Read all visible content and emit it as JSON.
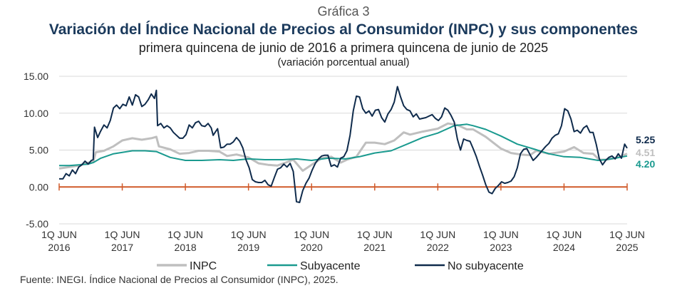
{
  "header": {
    "kicker": "Gráfica 3",
    "title": "Variación del Índice Nacional de Precios al Consumidor (INPC) y sus componentes",
    "subtitle": "primera quincena de junio de 2016 a primera quincena de junio de 2025",
    "units_note": "(variación porcentual anual)"
  },
  "source": "Fuente: INEGI. Índice Nacional de Precios al Consumidor (INPC), 2025.",
  "colors": {
    "inpc": "#bfbfbf",
    "subyacente": "#1a9a8f",
    "no_subyacente": "#0f2b4c",
    "zero_axis": "#d05a2a",
    "grid": "#d9d9d9"
  },
  "chart_data": {
    "type": "line",
    "x_tick_labels": [
      [
        "1Q JUN",
        "2016"
      ],
      [
        "1Q JUN",
        "2017"
      ],
      [
        "1Q JUN",
        "2018"
      ],
      [
        "1Q JUN",
        "2019"
      ],
      [
        "1Q JUN",
        "2020"
      ],
      [
        "1Q JUN",
        "2021"
      ],
      [
        "1Q JUN",
        "2022"
      ],
      [
        "1Q JUN",
        "2023"
      ],
      [
        "1Q JUN",
        "2024"
      ],
      [
        "1Q JUN",
        "2025"
      ]
    ],
    "ylim": [
      -5,
      15
    ],
    "yticks": [
      -5,
      0,
      5,
      10,
      15
    ],
    "ytick_labels": [
      "-5.00",
      "0.00",
      "5.00",
      "10.00",
      "15.00"
    ],
    "xlim": [
      2016.44,
      2025.44
    ],
    "legend_position": "bottom",
    "grid": "horizontal",
    "series": [
      {
        "name": "INPC",
        "end_label": "4.51",
        "points": [
          [
            2016.44,
            2.5
          ],
          [
            2016.6,
            2.7
          ],
          [
            2016.75,
            2.9
          ],
          [
            2016.9,
            3.3
          ],
          [
            2016.98,
            3.4
          ],
          [
            2017.02,
            4.7
          ],
          [
            2017.15,
            4.9
          ],
          [
            2017.3,
            5.5
          ],
          [
            2017.44,
            6.3
          ],
          [
            2017.6,
            6.6
          ],
          [
            2017.75,
            6.4
          ],
          [
            2017.9,
            6.6
          ],
          [
            2017.98,
            6.8
          ],
          [
            2018.02,
            5.5
          ],
          [
            2018.2,
            5.1
          ],
          [
            2018.35,
            4.5
          ],
          [
            2018.5,
            4.6
          ],
          [
            2018.65,
            4.9
          ],
          [
            2018.8,
            4.9
          ],
          [
            2018.98,
            4.8
          ],
          [
            2019.1,
            4.2
          ],
          [
            2019.25,
            4.4
          ],
          [
            2019.44,
            4.0
          ],
          [
            2019.6,
            3.2
          ],
          [
            2019.75,
            3.0
          ],
          [
            2019.9,
            2.9
          ],
          [
            2020.0,
            3.2
          ],
          [
            2020.15,
            3.7
          ],
          [
            2020.3,
            2.2
          ],
          [
            2020.44,
            3.0
          ],
          [
            2020.6,
            3.9
          ],
          [
            2020.75,
            4.1
          ],
          [
            2020.9,
            3.3
          ],
          [
            2021.0,
            3.7
          ],
          [
            2021.15,
            4.1
          ],
          [
            2021.3,
            6.0
          ],
          [
            2021.44,
            6.0
          ],
          [
            2021.6,
            5.8
          ],
          [
            2021.75,
            6.3
          ],
          [
            2021.9,
            7.4
          ],
          [
            2022.0,
            7.1
          ],
          [
            2022.2,
            7.5
          ],
          [
            2022.44,
            7.9
          ],
          [
            2022.6,
            8.6
          ],
          [
            2022.75,
            8.4
          ],
          [
            2022.9,
            7.8
          ],
          [
            2023.0,
            7.8
          ],
          [
            2023.2,
            6.8
          ],
          [
            2023.44,
            5.2
          ],
          [
            2023.6,
            4.6
          ],
          [
            2023.75,
            4.4
          ],
          [
            2023.9,
            4.3
          ],
          [
            2024.0,
            4.9
          ],
          [
            2024.2,
            4.5
          ],
          [
            2024.44,
            4.8
          ],
          [
            2024.6,
            5.4
          ],
          [
            2024.75,
            4.6
          ],
          [
            2024.9,
            4.5
          ],
          [
            2025.0,
            3.7
          ],
          [
            2025.1,
            3.7
          ],
          [
            2025.25,
            3.9
          ],
          [
            2025.35,
            4.2
          ],
          [
            2025.44,
            4.51
          ]
        ]
      },
      {
        "name": "Subyacente",
        "end_label": "4.20",
        "points": [
          [
            2016.44,
            2.9
          ],
          [
            2016.6,
            2.9
          ],
          [
            2016.75,
            3.0
          ],
          [
            2016.9,
            3.1
          ],
          [
            2016.98,
            3.3
          ],
          [
            2017.1,
            3.9
          ],
          [
            2017.3,
            4.5
          ],
          [
            2017.6,
            4.9
          ],
          [
            2017.8,
            4.9
          ],
          [
            2017.98,
            4.8
          ],
          [
            2018.2,
            4.0
          ],
          [
            2018.44,
            3.6
          ],
          [
            2018.7,
            3.6
          ],
          [
            2018.98,
            3.7
          ],
          [
            2019.2,
            3.6
          ],
          [
            2019.44,
            3.8
          ],
          [
            2019.7,
            3.7
          ],
          [
            2019.98,
            3.7
          ],
          [
            2020.2,
            3.8
          ],
          [
            2020.44,
            3.6
          ],
          [
            2020.7,
            3.9
          ],
          [
            2020.98,
            3.8
          ],
          [
            2021.2,
            4.1
          ],
          [
            2021.44,
            4.6
          ],
          [
            2021.7,
            4.9
          ],
          [
            2021.98,
            5.9
          ],
          [
            2022.2,
            6.7
          ],
          [
            2022.44,
            7.3
          ],
          [
            2022.7,
            8.3
          ],
          [
            2022.9,
            8.5
          ],
          [
            2023.0,
            8.3
          ],
          [
            2023.2,
            7.8
          ],
          [
            2023.44,
            6.9
          ],
          [
            2023.7,
            5.8
          ],
          [
            2023.98,
            5.1
          ],
          [
            2024.2,
            4.5
          ],
          [
            2024.44,
            4.1
          ],
          [
            2024.7,
            4.0
          ],
          [
            2024.98,
            3.6
          ],
          [
            2025.1,
            3.7
          ],
          [
            2025.25,
            3.9
          ],
          [
            2025.44,
            4.2
          ]
        ]
      },
      {
        "name": "No subyacente",
        "end_label": "5.25",
        "points": [
          [
            2016.44,
            1.1
          ],
          [
            2016.5,
            1.1
          ],
          [
            2016.55,
            1.8
          ],
          [
            2016.6,
            1.5
          ],
          [
            2016.65,
            2.3
          ],
          [
            2016.7,
            1.8
          ],
          [
            2016.75,
            2.7
          ],
          [
            2016.8,
            3.0
          ],
          [
            2016.85,
            3.5
          ],
          [
            2016.9,
            3.1
          ],
          [
            2016.95,
            3.6
          ],
          [
            2016.98,
            3.7
          ],
          [
            2017.0,
            8.1
          ],
          [
            2017.05,
            6.7
          ],
          [
            2017.1,
            7.6
          ],
          [
            2017.15,
            8.4
          ],
          [
            2017.2,
            8.0
          ],
          [
            2017.25,
            9.0
          ],
          [
            2017.3,
            10.7
          ],
          [
            2017.35,
            11.1
          ],
          [
            2017.4,
            10.6
          ],
          [
            2017.45,
            11.2
          ],
          [
            2017.5,
            11.0
          ],
          [
            2017.55,
            12.2
          ],
          [
            2017.6,
            11.1
          ],
          [
            2017.65,
            12.5
          ],
          [
            2017.7,
            12.2
          ],
          [
            2017.75,
            10.9
          ],
          [
            2017.8,
            11.2
          ],
          [
            2017.85,
            11.8
          ],
          [
            2017.9,
            12.6
          ],
          [
            2017.95,
            12.0
          ],
          [
            2017.98,
            13.1
          ],
          [
            2018.0,
            8.3
          ],
          [
            2018.05,
            8.6
          ],
          [
            2018.1,
            8.0
          ],
          [
            2018.15,
            8.3
          ],
          [
            2018.2,
            8.0
          ],
          [
            2018.25,
            7.4
          ],
          [
            2018.3,
            7.0
          ],
          [
            2018.35,
            6.6
          ],
          [
            2018.4,
            6.6
          ],
          [
            2018.45,
            7.1
          ],
          [
            2018.5,
            8.4
          ],
          [
            2018.55,
            8.0
          ],
          [
            2018.6,
            8.7
          ],
          [
            2018.65,
            8.9
          ],
          [
            2018.7,
            8.3
          ],
          [
            2018.75,
            8.2
          ],
          [
            2018.8,
            8.6
          ],
          [
            2018.85,
            8.0
          ],
          [
            2018.88,
            7.0
          ],
          [
            2018.95,
            7.9
          ],
          [
            2019.0,
            5.3
          ],
          [
            2019.05,
            5.4
          ],
          [
            2019.1,
            5.8
          ],
          [
            2019.15,
            5.8
          ],
          [
            2019.2,
            6.1
          ],
          [
            2019.25,
            6.7
          ],
          [
            2019.3,
            6.2
          ],
          [
            2019.35,
            5.3
          ],
          [
            2019.4,
            3.7
          ],
          [
            2019.45,
            2.6
          ],
          [
            2019.5,
            1.0
          ],
          [
            2019.55,
            0.7
          ],
          [
            2019.6,
            0.6
          ],
          [
            2019.65,
            0.6
          ],
          [
            2019.7,
            0.9
          ],
          [
            2019.75,
            0.3
          ],
          [
            2019.8,
            0.1
          ],
          [
            2019.85,
            1.3
          ],
          [
            2019.9,
            2.4
          ],
          [
            2019.95,
            2.6
          ],
          [
            2020.0,
            3.1
          ],
          [
            2020.05,
            2.7
          ],
          [
            2020.1,
            3.2
          ],
          [
            2020.15,
            2.1
          ],
          [
            2020.2,
            -2.0
          ],
          [
            2020.25,
            -2.1
          ],
          [
            2020.3,
            -0.5
          ],
          [
            2020.35,
            0.5
          ],
          [
            2020.4,
            1.2
          ],
          [
            2020.45,
            2.3
          ],
          [
            2020.5,
            3.2
          ],
          [
            2020.55,
            3.8
          ],
          [
            2020.6,
            4.2
          ],
          [
            2020.65,
            4.3
          ],
          [
            2020.7,
            4.3
          ],
          [
            2020.75,
            2.8
          ],
          [
            2020.8,
            3.0
          ],
          [
            2020.85,
            2.7
          ],
          [
            2020.9,
            3.9
          ],
          [
            2020.95,
            4.1
          ],
          [
            2021.0,
            4.9
          ],
          [
            2021.05,
            7.0
          ],
          [
            2021.1,
            10.3
          ],
          [
            2021.15,
            12.3
          ],
          [
            2021.2,
            12.2
          ],
          [
            2021.25,
            10.6
          ],
          [
            2021.3,
            10.0
          ],
          [
            2021.35,
            10.3
          ],
          [
            2021.4,
            9.6
          ],
          [
            2021.45,
            10.4
          ],
          [
            2021.5,
            10.5
          ],
          [
            2021.55,
            9.4
          ],
          [
            2021.6,
            8.8
          ],
          [
            2021.65,
            9.9
          ],
          [
            2021.7,
            10.5
          ],
          [
            2021.75,
            11.5
          ],
          [
            2021.8,
            13.6
          ],
          [
            2021.85,
            12.2
          ],
          [
            2021.9,
            11.0
          ],
          [
            2021.95,
            10.5
          ],
          [
            2022.0,
            10.3
          ],
          [
            2022.05,
            9.5
          ],
          [
            2022.1,
            9.9
          ],
          [
            2022.15,
            9.2
          ],
          [
            2022.2,
            9.3
          ],
          [
            2022.25,
            9.4
          ],
          [
            2022.3,
            9.6
          ],
          [
            2022.35,
            9.8
          ],
          [
            2022.4,
            9.3
          ],
          [
            2022.45,
            9.0
          ],
          [
            2022.5,
            9.5
          ],
          [
            2022.55,
            10.7
          ],
          [
            2022.6,
            10.4
          ],
          [
            2022.65,
            9.7
          ],
          [
            2022.7,
            8.8
          ],
          [
            2022.75,
            6.5
          ],
          [
            2022.8,
            5.0
          ],
          [
            2022.85,
            6.5
          ],
          [
            2022.9,
            6.3
          ],
          [
            2022.95,
            6.2
          ],
          [
            2023.0,
            5.2
          ],
          [
            2023.05,
            4.1
          ],
          [
            2023.1,
            2.8
          ],
          [
            2023.15,
            1.6
          ],
          [
            2023.2,
            0.3
          ],
          [
            2023.25,
            -0.7
          ],
          [
            2023.3,
            -0.9
          ],
          [
            2023.35,
            -0.2
          ],
          [
            2023.4,
            0.2
          ],
          [
            2023.45,
            0.7
          ],
          [
            2023.5,
            0.5
          ],
          [
            2023.55,
            0.6
          ],
          [
            2023.6,
            0.8
          ],
          [
            2023.65,
            1.4
          ],
          [
            2023.7,
            2.6
          ],
          [
            2023.75,
            4.5
          ],
          [
            2023.8,
            5.1
          ],
          [
            2023.85,
            5.2
          ],
          [
            2023.9,
            4.4
          ],
          [
            2023.95,
            3.6
          ],
          [
            2024.0,
            4.0
          ],
          [
            2024.05,
            4.5
          ],
          [
            2024.1,
            5.0
          ],
          [
            2024.15,
            5.5
          ],
          [
            2024.2,
            5.9
          ],
          [
            2024.25,
            6.6
          ],
          [
            2024.3,
            7.0
          ],
          [
            2024.35,
            7.2
          ],
          [
            2024.4,
            8.3
          ],
          [
            2024.45,
            10.6
          ],
          [
            2024.5,
            10.3
          ],
          [
            2024.55,
            9.2
          ],
          [
            2024.6,
            7.5
          ],
          [
            2024.65,
            7.7
          ],
          [
            2024.7,
            7.3
          ],
          [
            2024.75,
            8.0
          ],
          [
            2024.8,
            8.3
          ],
          [
            2024.85,
            7.4
          ],
          [
            2024.9,
            7.4
          ],
          [
            2024.95,
            5.8
          ],
          [
            2025.0,
            3.8
          ],
          [
            2025.05,
            3.0
          ],
          [
            2025.1,
            3.6
          ],
          [
            2025.15,
            4.0
          ],
          [
            2025.2,
            4.2
          ],
          [
            2025.25,
            3.8
          ],
          [
            2025.3,
            4.5
          ],
          [
            2025.35,
            3.9
          ],
          [
            2025.4,
            5.8
          ],
          [
            2025.44,
            5.25
          ]
        ]
      }
    ]
  }
}
